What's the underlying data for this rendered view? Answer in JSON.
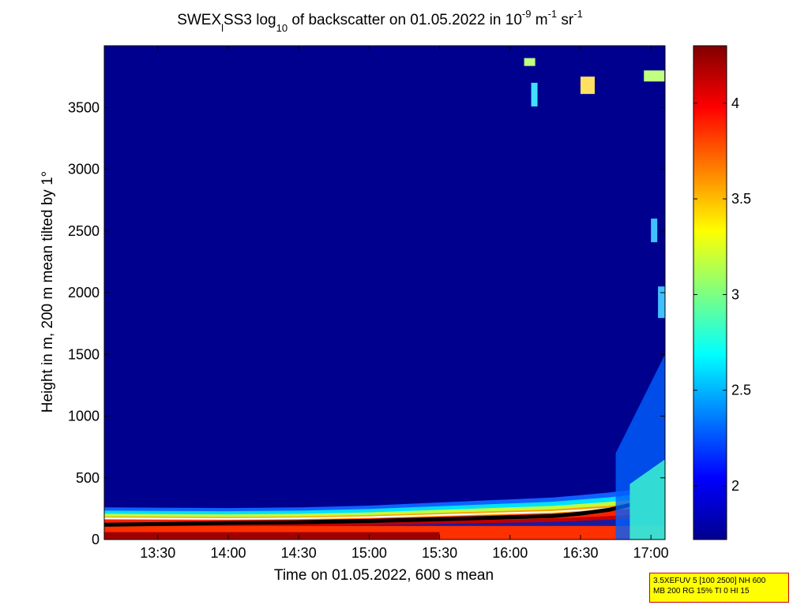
{
  "chart_data": {
    "type": "heatmap",
    "title": {
      "prefix": "SWEX",
      "prefix_sub": "l",
      "middle": "SS3 log",
      "middle_sub": "10",
      "rest": " of backscatter on 01.05.2022 in 10",
      "exp1": "-9",
      "unit1": " m",
      "exp2": "-1",
      "unit2": " sr",
      "exp3": "-1"
    },
    "xlabel": "Time on 01.05.2022, 600 s mean",
    "ylabel": "Height in m, 200 m mean tilted by 1°",
    "x_ticks": [
      "13:30",
      "14:00",
      "14:30",
      "15:00",
      "15:30",
      "16:00",
      "16:30",
      "17:00"
    ],
    "x_tick_hours": [
      13.5,
      14.0,
      14.5,
      15.0,
      15.5,
      16.0,
      16.5,
      17.0
    ],
    "xlim_hours": [
      13.12,
      17.1
    ],
    "y_ticks": [
      "0",
      "500",
      "1000",
      "1500",
      "2000",
      "2500",
      "3000",
      "3500"
    ],
    "y_tick_values": [
      0,
      500,
      1000,
      1500,
      2000,
      2500,
      3000,
      3500
    ],
    "ylim": [
      0,
      4000
    ],
    "colorbar": {
      "ticks": [
        "2",
        "2.5",
        "3",
        "3.5",
        "4"
      ],
      "tick_values": [
        2.0,
        2.5,
        3.0,
        3.5,
        4.0
      ],
      "range": [
        1.72,
        4.3
      ],
      "colormap": "jet"
    },
    "background_value": 1.75,
    "layer": {
      "times_h": [
        13.12,
        13.5,
        14.0,
        14.5,
        15.0,
        15.5,
        16.0,
        16.3,
        16.5,
        16.7,
        16.85
      ],
      "top_m": [
        260,
        258,
        255,
        260,
        275,
        300,
        325,
        340,
        360,
        380,
        400
      ],
      "marker_m": [
        120,
        125,
        135,
        140,
        150,
        165,
        180,
        190,
        210,
        240,
        280
      ]
    },
    "grid": false
  },
  "param_box": {
    "line1": "3.5XEFUV 5 [100 2500] NH 600",
    "line2": "MB 200 RG 15% TI 0 HI 15"
  },
  "colors": {
    "background_field": "#00008f",
    "param_box_bg": "#ffff00",
    "param_box_border": "#cc0000"
  }
}
